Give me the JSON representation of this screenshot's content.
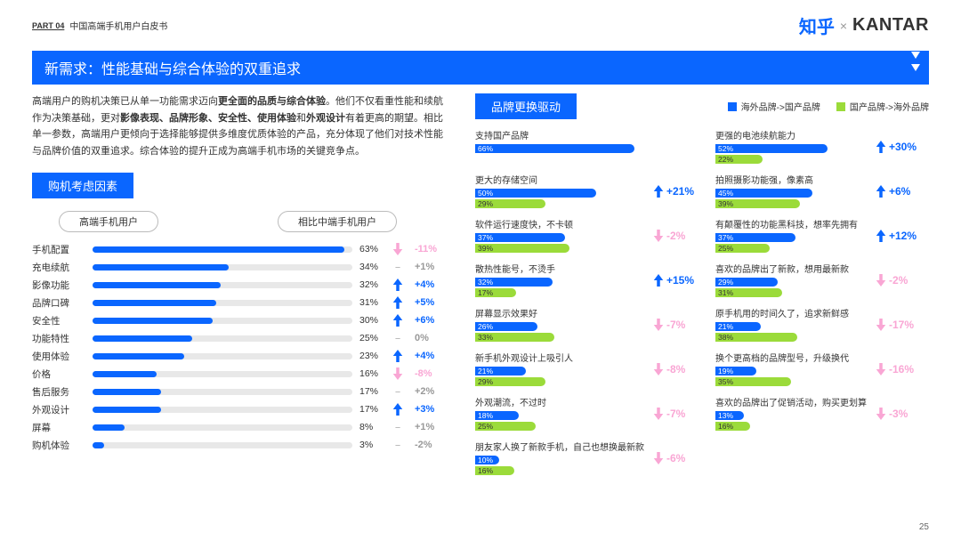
{
  "header": {
    "part": "PART 04",
    "book": "中国高端手机用户白皮书",
    "brand1": "知乎",
    "x": "×",
    "brand2": "KANTAR"
  },
  "title": "新需求：性能基础与综合体验的双重追求",
  "desc_html": "高端用户的购机决策已从单一功能需求迈向<b>更全面的品质与综合体验</b>。他们不仅看重性能和续航作为决策基础，更对<b>影像表现、品牌形象、安全性、使用体验</b>和<b>外观设计</b>有着更高的期望。相比单一参数，高端用户更倾向于选择能够提供多维度优质体验的产品，充分体现了他们对技术性能与品牌价值的双重追求。综合体验的提升正成为高端手机市场的关键竞争点。",
  "left": {
    "tag": "购机考虑因素",
    "pill1": "高端手机用户",
    "pill2": "相比中端手机用户",
    "max_pct": 65,
    "items": [
      {
        "label": "手机配置",
        "pct": 63,
        "delta": -11,
        "dir": "down"
      },
      {
        "label": "充电续航",
        "pct": 34,
        "delta": 1,
        "dir": "flat"
      },
      {
        "label": "影像功能",
        "pct": 32,
        "delta": 4,
        "dir": "up"
      },
      {
        "label": "品牌口碑",
        "pct": 31,
        "delta": 5,
        "dir": "up"
      },
      {
        "label": "安全性",
        "pct": 30,
        "delta": 6,
        "dir": "up"
      },
      {
        "label": "功能特性",
        "pct": 25,
        "delta": 0,
        "dir": "flat"
      },
      {
        "label": "使用体验",
        "pct": 23,
        "delta": 4,
        "dir": "up"
      },
      {
        "label": "价格",
        "pct": 16,
        "delta": -8,
        "dir": "down"
      },
      {
        "label": "售后服务",
        "pct": 17,
        "delta": 2,
        "dir": "flat"
      },
      {
        "label": "外观设计",
        "pct": 17,
        "delta": 3,
        "dir": "up"
      },
      {
        "label": "屏幕",
        "pct": 8,
        "delta": 1,
        "dir": "flat"
      },
      {
        "label": "购机体验",
        "pct": 3,
        "delta": -2,
        "dir": "flat"
      }
    ]
  },
  "right": {
    "tag": "品牌更换驱动",
    "legend1": "海外品牌->国产品牌",
    "legend2": "国产品牌->海外品牌",
    "max_pct": 70,
    "rows": [
      [
        {
          "title": "支持国产品牌",
          "blue": 66,
          "green": null,
          "delta": null,
          "dir": null
        },
        {
          "title": "更强的电池续航能力",
          "blue": 52,
          "green": 22,
          "delta": 30,
          "dir": "up"
        }
      ],
      [
        {
          "title": "更大的存储空间",
          "blue": 50,
          "green": 29,
          "delta": 21,
          "dir": "up"
        },
        {
          "title": "拍照摄影功能强，像素高",
          "blue": 45,
          "green": 39,
          "delta": 6,
          "dir": "up"
        }
      ],
      [
        {
          "title": "软件运行速度快，不卡顿",
          "blue": 37,
          "green": 39,
          "delta": -2,
          "dir": "down"
        },
        {
          "title": "有颠覆性的功能黑科技，想率先拥有",
          "blue": 37,
          "green": 25,
          "delta": 12,
          "dir": "up"
        }
      ],
      [
        {
          "title": "散热性能号，不烫手",
          "blue": 32,
          "green": 17,
          "delta": 15,
          "dir": "up"
        },
        {
          "title": "喜欢的品牌出了新款，想用最新款",
          "blue": 29,
          "green": 31,
          "delta": -2,
          "dir": "down"
        }
      ],
      [
        {
          "title": "屏幕显示效果好",
          "blue": 26,
          "green": 33,
          "delta": -7,
          "dir": "down"
        },
        {
          "title": "原手机用的时间久了，追求新鲜感",
          "blue": 21,
          "green": 38,
          "delta": -17,
          "dir": "down"
        }
      ],
      [
        {
          "title": "新手机外观设计上吸引人",
          "blue": 21,
          "green": 29,
          "delta": -8,
          "dir": "down"
        },
        {
          "title": "换个更高档的品牌型号，升级换代",
          "blue": 19,
          "green": 35,
          "delta": -16,
          "dir": "down"
        }
      ],
      [
        {
          "title": "外观潮流，不过时",
          "blue": 18,
          "green": 25,
          "delta": -7,
          "dir": "down"
        },
        {
          "title": "喜欢的品牌出了促销活动，购买更划算",
          "blue": 13,
          "green": 16,
          "delta": -3,
          "dir": "down"
        }
      ],
      [
        {
          "title": "朋友家人换了新款手机，自己也想换最新款",
          "blue": 10,
          "green": 16,
          "delta": -6,
          "dir": "down"
        },
        null
      ]
    ]
  },
  "pagenum": "25",
  "colors": {
    "blue": "#0a66ff",
    "green": "#9bdb3a",
    "pink": "#f9a6d4",
    "grey": "#bbbbbb"
  }
}
